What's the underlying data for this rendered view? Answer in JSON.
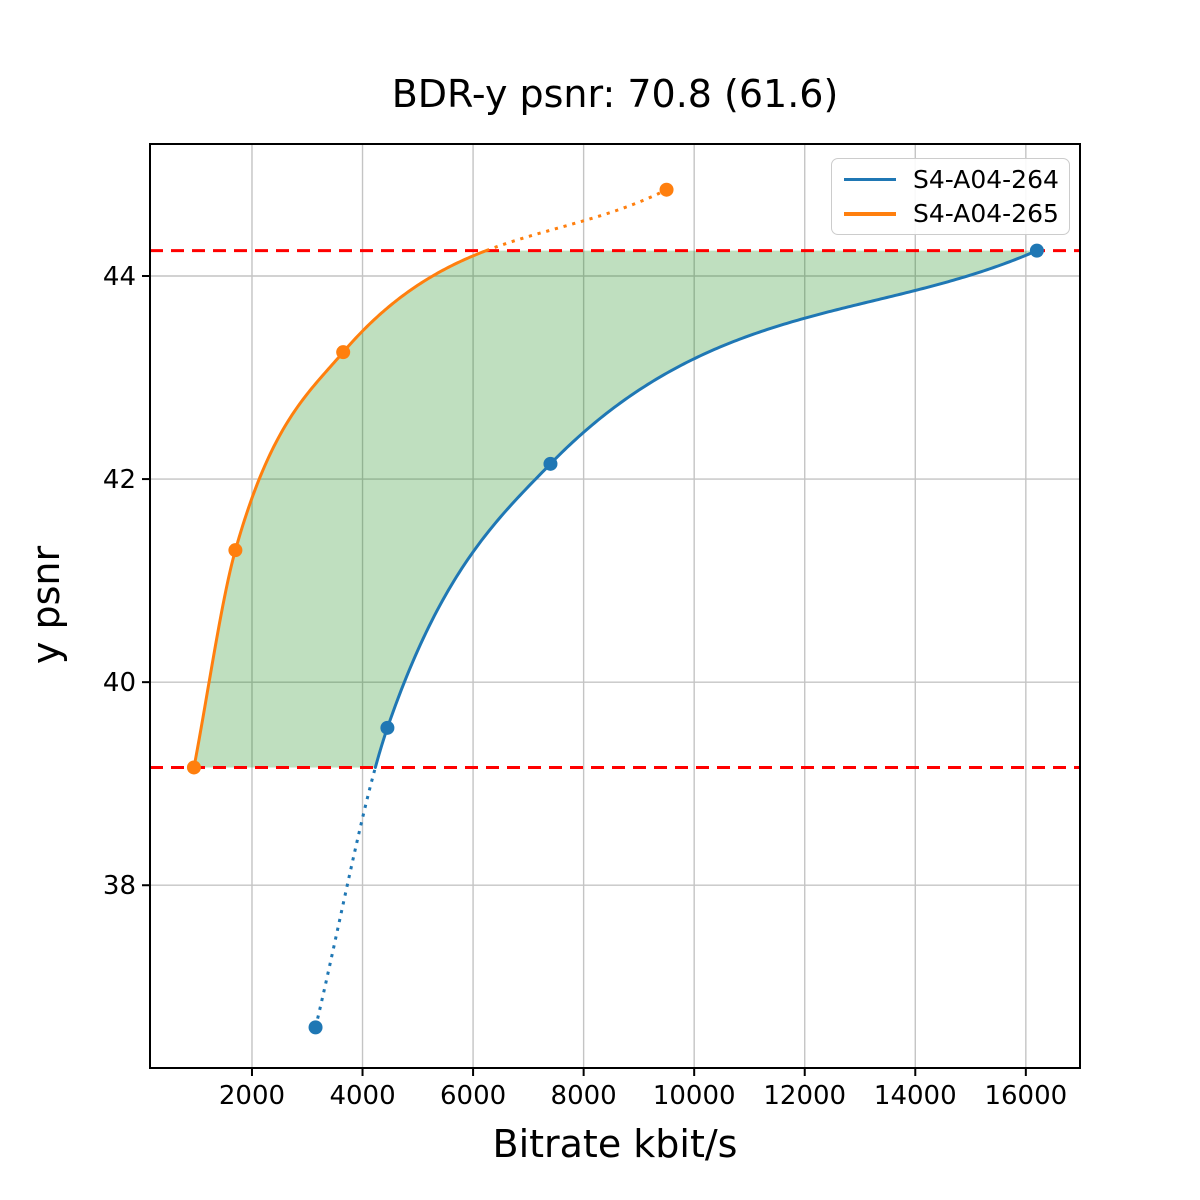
{
  "chart_data": {
    "type": "line",
    "title": "BDR-y psnr: 70.8 (61.6)",
    "xlabel": "Bitrate kbit/s",
    "ylabel": "y psnr",
    "xlim": [
      155,
      16980
    ],
    "ylim": [
      36.2,
      45.3
    ],
    "xticks": [
      2000,
      4000,
      6000,
      8000,
      10000,
      12000,
      14000,
      16000
    ],
    "yticks": [
      38,
      40,
      42,
      44
    ],
    "grid": true,
    "grid_color": "#c4c4c4",
    "legend_position": "upper right",
    "series": [
      {
        "name": "S4-A04-264",
        "color": "#1f77b4",
        "points": [
          [
            3150,
            36.6
          ],
          [
            4450,
            39.55
          ],
          [
            7400,
            42.15
          ],
          [
            16200,
            44.25
          ]
        ]
      },
      {
        "name": "S4-A04-265",
        "color": "#ff7f0e",
        "points": [
          [
            950,
            39.16
          ],
          [
            1700,
            41.3
          ],
          [
            3650,
            43.25
          ],
          [
            9500,
            44.85
          ]
        ]
      }
    ],
    "bd_bounds": {
      "lower": 39.16,
      "upper": 44.25,
      "color": "#ff0000",
      "style": "dashed"
    },
    "overlap_fill": {
      "color": "#008000",
      "opacity": 0.25
    }
  }
}
